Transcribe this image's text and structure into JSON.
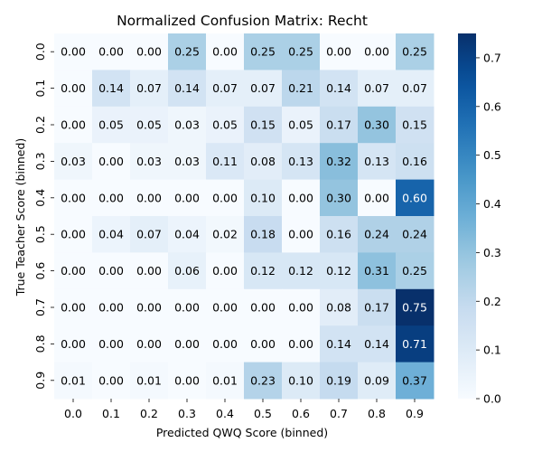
{
  "chart_data": {
    "type": "heatmap",
    "title": "Normalized Confusion Matrix: Recht",
    "xlabel": "Predicted QWQ Score (binned)",
    "ylabel": "True Teacher Score (binned)",
    "x_categories": [
      "0.0",
      "0.1",
      "0.2",
      "0.3",
      "0.4",
      "0.5",
      "0.6",
      "0.7",
      "0.8",
      "0.9"
    ],
    "y_categories": [
      "0.0",
      "0.1",
      "0.2",
      "0.3",
      "0.4",
      "0.5",
      "0.6",
      "0.7",
      "0.8",
      "0.9"
    ],
    "values": [
      [
        0.0,
        0.0,
        0.0,
        0.25,
        0.0,
        0.25,
        0.25,
        0.0,
        0.0,
        0.25
      ],
      [
        0.0,
        0.14,
        0.07,
        0.14,
        0.07,
        0.07,
        0.21,
        0.14,
        0.07,
        0.07
      ],
      [
        0.0,
        0.05,
        0.05,
        0.03,
        0.05,
        0.15,
        0.05,
        0.17,
        0.3,
        0.15
      ],
      [
        0.03,
        0.0,
        0.03,
        0.03,
        0.11,
        0.08,
        0.13,
        0.32,
        0.13,
        0.16
      ],
      [
        0.0,
        0.0,
        0.0,
        0.0,
        0.0,
        0.1,
        0.0,
        0.3,
        0.0,
        0.6
      ],
      [
        0.0,
        0.04,
        0.07,
        0.04,
        0.02,
        0.18,
        0.0,
        0.16,
        0.24,
        0.24
      ],
      [
        0.0,
        0.0,
        0.0,
        0.06,
        0.0,
        0.12,
        0.12,
        0.12,
        0.31,
        0.25
      ],
      [
        0.0,
        0.0,
        0.0,
        0.0,
        0.0,
        0.0,
        0.0,
        0.08,
        0.17,
        0.75
      ],
      [
        0.0,
        0.0,
        0.0,
        0.0,
        0.0,
        0.0,
        0.0,
        0.14,
        0.14,
        0.71
      ],
      [
        0.01,
        0.0,
        0.01,
        0.0,
        0.01,
        0.23,
        0.1,
        0.19,
        0.09,
        0.37
      ]
    ],
    "value_format": "0.00",
    "colormap": "Blues",
    "colorbar": {
      "vmin": 0.0,
      "vmax": 0.75,
      "ticks": [
        0.0,
        0.1,
        0.2,
        0.3,
        0.4,
        0.5,
        0.6,
        0.7
      ],
      "tick_labels": [
        "0.0",
        "0.1",
        "0.2",
        "0.3",
        "0.4",
        "0.5",
        "0.6",
        "0.7"
      ]
    },
    "grid": false,
    "legend": "colorbar-right"
  }
}
